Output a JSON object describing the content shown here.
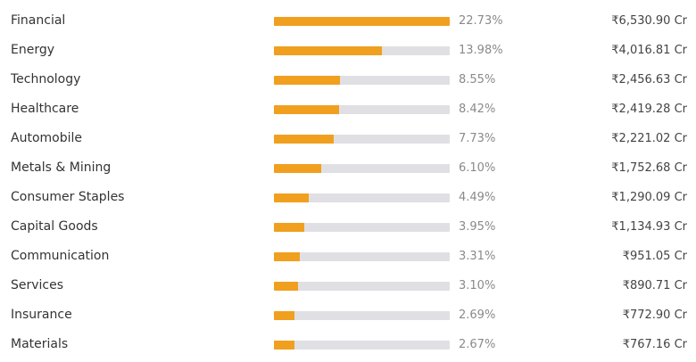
{
  "colors": {
    "bar_fill": "#f0a01e",
    "bar_track": "#e0e0e4"
  },
  "sectors": [
    {
      "name": "Financial",
      "percent": "22.73%",
      "amount": "₹6,530.90 Cr",
      "fill_fraction": 1.0
    },
    {
      "name": "Energy",
      "percent": "13.98%",
      "amount": "₹4,016.81 Cr",
      "fill_fraction": 0.615
    },
    {
      "name": "Technology",
      "percent": "8.55%",
      "amount": "₹2,456.63 Cr",
      "fill_fraction": 0.376
    },
    {
      "name": "Healthcare",
      "percent": "8.42%",
      "amount": "₹2,419.28 Cr",
      "fill_fraction": 0.37
    },
    {
      "name": "Automobile",
      "percent": "7.73%",
      "amount": "₹2,221.02 Cr",
      "fill_fraction": 0.34
    },
    {
      "name": "Metals & Mining",
      "percent": "6.10%",
      "amount": "₹1,752.68 Cr",
      "fill_fraction": 0.268
    },
    {
      "name": "Consumer Staples",
      "percent": "4.49%",
      "amount": "₹1,290.09 Cr",
      "fill_fraction": 0.198
    },
    {
      "name": "Capital Goods",
      "percent": "3.95%",
      "amount": "₹1,134.93 Cr",
      "fill_fraction": 0.174
    },
    {
      "name": "Communication",
      "percent": "3.31%",
      "amount": "₹951.05 Cr",
      "fill_fraction": 0.146
    },
    {
      "name": "Services",
      "percent": "3.10%",
      "amount": "₹890.71 Cr",
      "fill_fraction": 0.136
    },
    {
      "name": "Insurance",
      "percent": "2.69%",
      "amount": "₹772.90 Cr",
      "fill_fraction": 0.118
    },
    {
      "name": "Materials",
      "percent": "2.67%",
      "amount": "₹767.16 Cr",
      "fill_fraction": 0.117
    }
  ]
}
